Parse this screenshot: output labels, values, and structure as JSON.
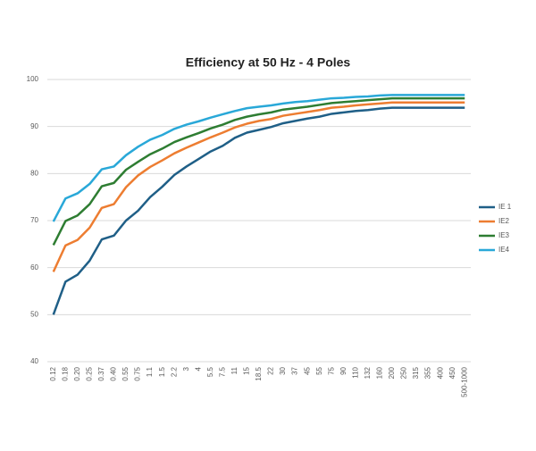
{
  "chart_data": {
    "type": "line",
    "title": "Efficiency at 50 Hz - 4 Poles",
    "categories": [
      "0.12",
      "0.18",
      "0.20",
      "0.25",
      "0.37",
      "0.40",
      "0.55",
      "0.75",
      "1.1",
      "1.5",
      "2.2",
      "3",
      "4",
      "5.5",
      "7.5",
      "11",
      "15",
      "18.5",
      "22",
      "30",
      "37",
      "45",
      "55",
      "75",
      "90",
      "110",
      "132",
      "160",
      "200",
      "250",
      "315",
      "355",
      "400",
      "450",
      "500-1000"
    ],
    "series": [
      {
        "name": "IE 1",
        "color": "#1f5f87",
        "values": [
          50,
          57,
          58.5,
          61.5,
          66,
          66.8,
          70,
          72.1,
          75,
          77.2,
          79.7,
          81.5,
          83.1,
          84.7,
          85.9,
          87.6,
          88.7,
          89.3,
          89.9,
          90.7,
          91.2,
          91.7,
          92.1,
          92.7,
          93,
          93.3,
          93.5,
          93.8,
          94,
          94,
          94,
          94,
          94,
          94,
          94
        ]
      },
      {
        "name": "IE2",
        "color": "#ed7d31",
        "values": [
          59.1,
          64.7,
          65.9,
          68.5,
          72.7,
          73.5,
          77.1,
          79.6,
          81.4,
          82.8,
          84.3,
          85.5,
          86.6,
          87.7,
          88.7,
          89.8,
          90.6,
          91.2,
          91.6,
          92.3,
          92.7,
          93.1,
          93.5,
          94,
          94.2,
          94.5,
          94.7,
          94.9,
          95.1,
          95.1,
          95.1,
          95.1,
          95.1,
          95.1,
          95.1
        ]
      },
      {
        "name": "IE3",
        "color": "#2e7d32",
        "values": [
          64.8,
          69.9,
          71.1,
          73.5,
          77.3,
          78,
          80.8,
          82.5,
          84.1,
          85.3,
          86.7,
          87.7,
          88.6,
          89.6,
          90.4,
          91.4,
          92.1,
          92.6,
          93,
          93.6,
          93.9,
          94.2,
          94.6,
          95,
          95.2,
          95.4,
          95.6,
          95.8,
          96,
          96,
          96,
          96,
          96,
          96,
          96
        ]
      },
      {
        "name": "IE4",
        "color": "#29a8d8",
        "values": [
          69.8,
          74.7,
          75.8,
          77.8,
          80.9,
          81.5,
          83.9,
          85.7,
          87.2,
          88.2,
          89.5,
          90.4,
          91.1,
          91.9,
          92.6,
          93.3,
          93.9,
          94.2,
          94.5,
          94.9,
          95.2,
          95.4,
          95.7,
          96,
          96.1,
          96.3,
          96.4,
          96.6,
          96.7,
          96.7,
          96.7,
          96.7,
          96.7,
          96.7,
          96.7
        ]
      }
    ],
    "ylim": [
      40,
      100
    ],
    "yticks": [
      40,
      50,
      60,
      70,
      80,
      90,
      100
    ],
    "grid": true,
    "legend": "right"
  }
}
